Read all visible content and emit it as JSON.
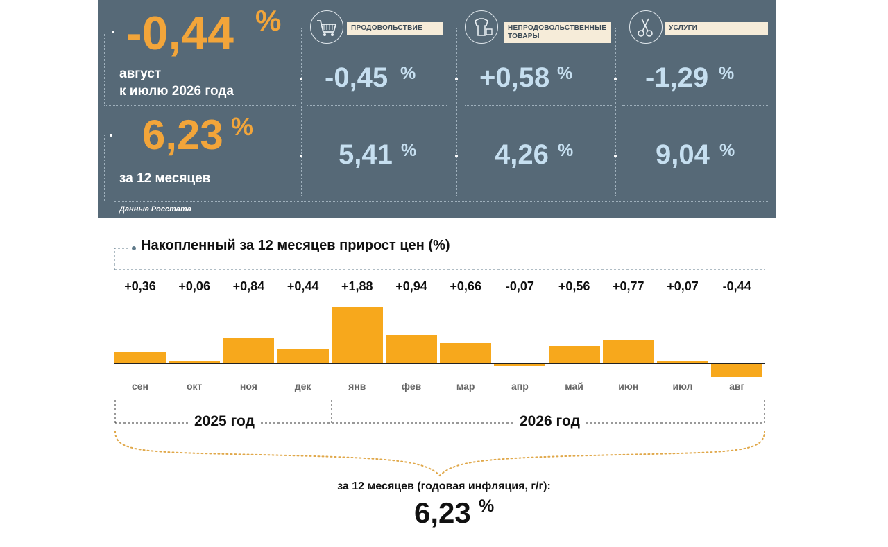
{
  "summary": {
    "month_value": "-0,44",
    "month_pct": "%",
    "month_line1": "август",
    "month_line2": "к июлю 2026 года",
    "annual_value": "6,23",
    "annual_pct": "%",
    "annual_label": "за 12 месяцев",
    "source": "Данные Росстата"
  },
  "categories": [
    {
      "label": "ПРОДОВОЛЬСТВИЕ",
      "month": "-0,45",
      "annual": "5,41",
      "icon": "shopping-cart-icon"
    },
    {
      "label_line1": "НЕПРОДОВОЛЬСТВЕННЫЕ",
      "label_line2": "ТОВАРЫ",
      "month": "+0,58",
      "annual": "4,26",
      "icon": "clothing-icon"
    },
    {
      "label": "УСЛУГИ",
      "month": "-1,29",
      "annual": "9,04",
      "icon": "scissors-icon"
    }
  ],
  "pct_sign": "%",
  "chart_data": {
    "type": "bar",
    "title": "Накопленный за 12 месяцев прирост цен (%)",
    "categories": [
      "сен",
      "окт",
      "ноя",
      "дек",
      "янв",
      "фев",
      "мар",
      "апр",
      "май",
      "июн",
      "июл",
      "авг"
    ],
    "values": [
      0.36,
      0.06,
      0.84,
      0.44,
      1.88,
      0.94,
      0.66,
      -0.07,
      0.56,
      0.77,
      0.07,
      -0.44
    ],
    "value_labels": [
      "+0,36",
      "+0,06",
      "+0,84",
      "+0,44",
      "+1,88",
      "+0,94",
      "+0,66",
      "-0,07",
      "+0,56",
      "+0,77",
      "+0,07",
      "-0,44"
    ],
    "year_groups": [
      {
        "label": "2025 год",
        "months": 4
      },
      {
        "label": "2026 год",
        "months": 8
      }
    ],
    "bar_color": "#f7a81c"
  },
  "footer": {
    "title": "за 12 месяцев (годовая инфляция, г/г):",
    "value": "6,23",
    "pct": "%"
  },
  "colors": {
    "panel": "#566977",
    "accent": "#f2a53a",
    "light_value": "#c6dff0",
    "label_bg": "#f6ecd9"
  }
}
